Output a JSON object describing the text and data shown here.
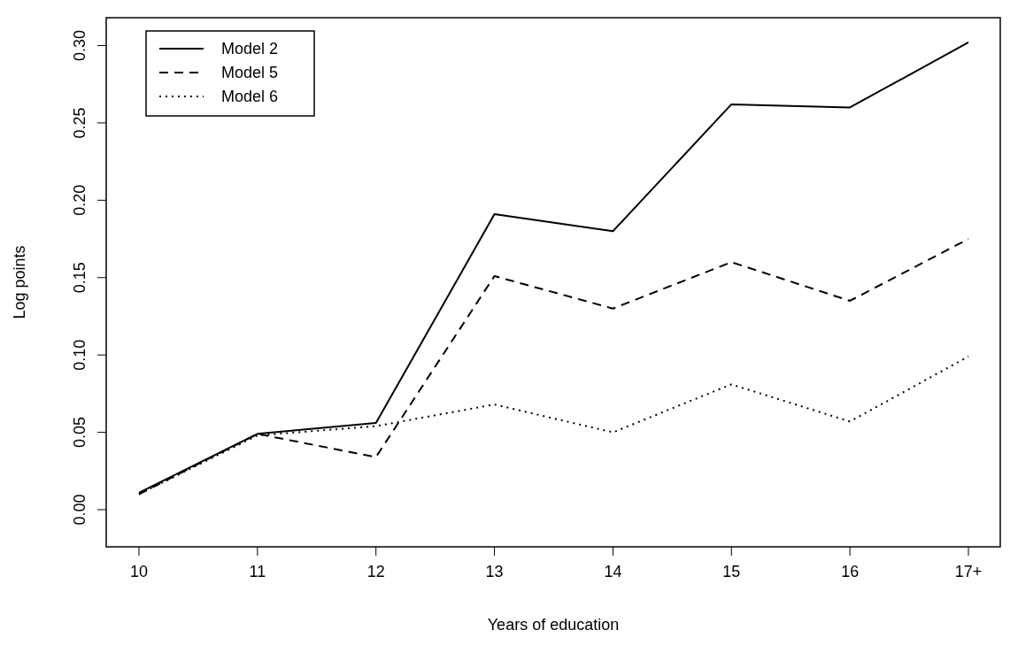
{
  "chart_data": {
    "type": "line",
    "xlabel": "Years of education",
    "ylabel": "Log points",
    "categories": [
      "10",
      "11",
      "12",
      "13",
      "14",
      "15",
      "16",
      "17+"
    ],
    "ylim": [
      -0.024,
      0.318
    ],
    "yticks": [
      {
        "value": 0,
        "label": "0.00"
      },
      {
        "value": 0.05,
        "label": "0.05"
      },
      {
        "value": 0.1,
        "label": "0.10"
      },
      {
        "value": 0.15,
        "label": "0.15"
      },
      {
        "value": 0.2,
        "label": "0.20"
      },
      {
        "value": 0.25,
        "label": "0.25"
      },
      {
        "value": 0.3,
        "label": "0.30"
      }
    ],
    "grid": false,
    "legend": "top left",
    "marker": "none",
    "series": [
      {
        "name": "Model 2",
        "color": "#000000",
        "line_style": "solid",
        "values": [
          0.011,
          0.049,
          0.056,
          0.191,
          0.18,
          0.262,
          0.26,
          0.302
        ]
      },
      {
        "name": "Model 5",
        "color": "#000000",
        "line_style": "dashed",
        "values": [
          0.01,
          0.049,
          0.034,
          0.151,
          0.13,
          0.16,
          0.135,
          0.175
        ]
      },
      {
        "name": "Model 6",
        "color": "#000000",
        "line_style": "dotted",
        "values": [
          0.01,
          0.048,
          0.054,
          0.068,
          0.05,
          0.081,
          0.057,
          0.099
        ]
      }
    ]
  }
}
